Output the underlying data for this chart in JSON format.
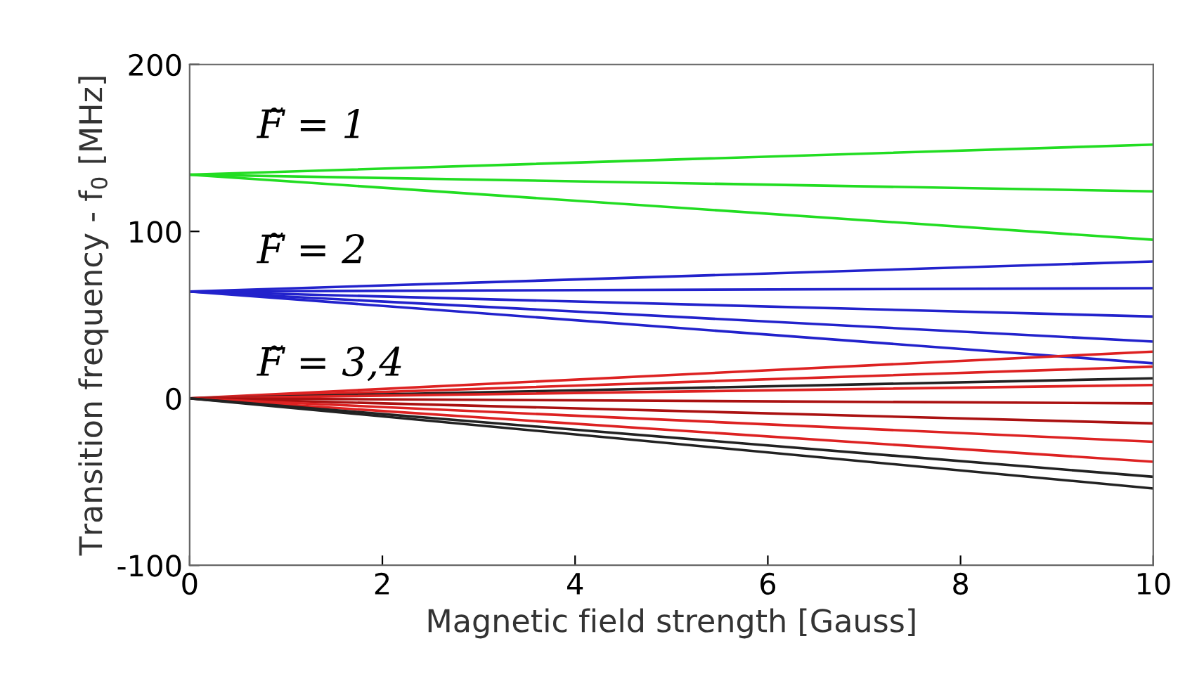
{
  "chart_data": {
    "type": "line",
    "xlabel": "Magnetic field strength [Gauss]",
    "ylabel": "Transition frequency - f$_{0}$ [MHz]",
    "x": [
      0,
      10
    ],
    "xlim": [
      0,
      10
    ],
    "xticks": [
      0,
      2,
      4,
      6,
      8,
      10
    ],
    "ylim": [
      -100,
      200
    ],
    "yticks": [
      -100,
      0,
      100,
      200
    ],
    "grid": false,
    "legend": false,
    "series": [
      {
        "color": "#22dd22",
        "values": [
          134,
          152
        ]
      },
      {
        "color": "#22dd22",
        "values": [
          134,
          124
        ]
      },
      {
        "color": "#22dd22",
        "values": [
          134,
          95
        ]
      },
      {
        "color": "#2222cc",
        "values": [
          64,
          82
        ]
      },
      {
        "color": "#2222cc",
        "values": [
          64,
          66
        ]
      },
      {
        "color": "#2222cc",
        "values": [
          64,
          49
        ]
      },
      {
        "color": "#2222cc",
        "values": [
          64,
          34
        ]
      },
      {
        "color": "#2222cc",
        "values": [
          64,
          21
        ]
      },
      {
        "color": "#dd2222",
        "values": [
          0,
          28
        ]
      },
      {
        "color": "#dd2222",
        "values": [
          0,
          19
        ]
      },
      {
        "color": "#222222",
        "values": [
          0,
          12
        ]
      },
      {
        "color": "#dd2222",
        "values": [
          0,
          8
        ]
      },
      {
        "color": "#aa1111",
        "values": [
          0,
          -3
        ]
      },
      {
        "color": "#aa1111",
        "values": [
          0,
          -15
        ]
      },
      {
        "color": "#dd2222",
        "values": [
          0,
          -26
        ]
      },
      {
        "color": "#dd2222",
        "values": [
          0,
          -38
        ]
      },
      {
        "color": "#222222",
        "values": [
          0,
          -47
        ]
      },
      {
        "color": "#222222",
        "values": [
          0,
          -54
        ]
      }
    ],
    "annotations": [
      "F̃ = 1",
      "F̃ = 2",
      "F̃ = 3,4"
    ]
  }
}
